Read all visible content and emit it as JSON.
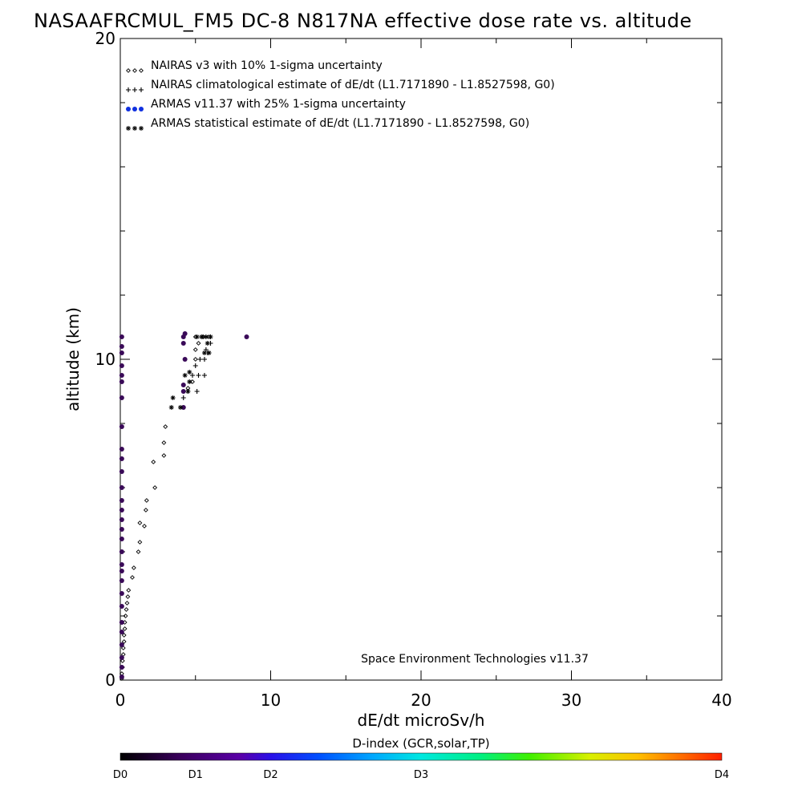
{
  "title": "NASAAFRCMUL_FM5 DC-8   N817NA effective dose rate vs. altitude",
  "credit": "Space Environment Technologies v11.37",
  "colorbar": {
    "label": "D-index (GCR,solar,TP)",
    "ticks": [
      "D0",
      "D1",
      "D2",
      "D3",
      "D4"
    ]
  },
  "chart_data": {
    "type": "scatter",
    "xlabel": "dE/dt microSv/h",
    "ylabel": "altitude (km)",
    "xlim": [
      0,
      40
    ],
    "ylim": [
      0,
      20
    ],
    "x_ticks": [
      "0",
      "10",
      "20",
      "30",
      "40"
    ],
    "y_ticks": [
      "0",
      "10",
      "20"
    ],
    "legend_position": "top-left",
    "series": [
      {
        "name": "NAIRAS v3 with 10% 1-sigma uncertainty",
        "marker": "diamond",
        "color": "#000000",
        "points": [
          [
            0.1,
            0.05
          ],
          [
            0.1,
            0.2
          ],
          [
            0.15,
            0.4
          ],
          [
            0.15,
            0.6
          ],
          [
            0.2,
            0.8
          ],
          [
            0.2,
            1.0
          ],
          [
            0.25,
            1.2
          ],
          [
            0.25,
            1.4
          ],
          [
            0.3,
            1.6
          ],
          [
            0.3,
            1.8
          ],
          [
            0.35,
            2.0
          ],
          [
            0.4,
            2.2
          ],
          [
            0.45,
            2.4
          ],
          [
            0.5,
            2.6
          ],
          [
            0.55,
            2.8
          ],
          [
            0.8,
            3.2
          ],
          [
            0.9,
            3.5
          ],
          [
            1.2,
            4.0
          ],
          [
            1.3,
            4.3
          ],
          [
            1.6,
            4.8
          ],
          [
            1.3,
            4.9
          ],
          [
            1.7,
            5.3
          ],
          [
            1.75,
            5.6
          ],
          [
            2.3,
            6.0
          ],
          [
            2.9,
            7.0
          ],
          [
            2.2,
            6.8
          ],
          [
            2.9,
            7.4
          ],
          [
            3.0,
            7.9
          ],
          [
            4.2,
            8.5
          ],
          [
            4.5,
            9.1
          ],
          [
            4.8,
            9.3
          ],
          [
            5.0,
            10.0
          ],
          [
            5.0,
            10.3
          ],
          [
            5.2,
            10.5
          ],
          [
            5.0,
            10.7
          ],
          [
            5.5,
            10.7
          ],
          [
            5.9,
            10.7
          ]
        ]
      },
      {
        "name": "NAIRAS climatological estimate of dE/dt (L1.7171890 - L1.8527598, G0)",
        "marker": "plus",
        "color": "#000000",
        "points": [
          [
            4.2,
            8.8
          ],
          [
            4.5,
            9.0
          ],
          [
            4.8,
            9.5
          ],
          [
            5.1,
            9.0
          ],
          [
            5.2,
            9.5
          ],
          [
            5.0,
            9.8
          ],
          [
            5.6,
            9.5
          ],
          [
            5.6,
            10.0
          ],
          [
            5.8,
            10.2
          ],
          [
            6.0,
            10.5
          ],
          [
            5.5,
            10.7
          ],
          [
            6.0,
            10.7
          ],
          [
            5.7,
            10.3
          ],
          [
            5.3,
            10.0
          ]
        ]
      },
      {
        "name": "ARMAS v11.37 with 25% 1-sigma uncertainty",
        "marker": "dot",
        "color": "#1030e0",
        "points": [
          [
            0.1,
            0.1
          ],
          [
            0.1,
            0.4
          ],
          [
            0.1,
            0.7
          ],
          [
            0.1,
            1.1
          ],
          [
            0.1,
            1.5
          ],
          [
            0.1,
            1.8
          ],
          [
            0.1,
            2.3
          ],
          [
            0.1,
            2.7
          ],
          [
            0.1,
            3.1
          ],
          [
            0.1,
            3.4
          ],
          [
            0.1,
            3.6
          ],
          [
            0.1,
            4.0
          ],
          [
            0.1,
            4.4
          ],
          [
            0.1,
            4.7
          ],
          [
            0.1,
            5.0
          ],
          [
            0.1,
            5.3
          ],
          [
            0.1,
            5.6
          ],
          [
            0.1,
            6.0
          ],
          [
            0.1,
            6.5
          ],
          [
            0.1,
            6.9
          ],
          [
            0.1,
            7.2
          ],
          [
            0.1,
            7.9
          ],
          [
            0.1,
            8.8
          ],
          [
            0.1,
            9.3
          ],
          [
            0.1,
            9.5
          ],
          [
            0.1,
            9.8
          ],
          [
            0.1,
            10.2
          ],
          [
            0.1,
            10.4
          ],
          [
            0.1,
            10.7
          ],
          [
            4.2,
            8.5
          ],
          [
            4.2,
            9.0
          ],
          [
            4.2,
            9.2
          ],
          [
            4.3,
            10.0
          ],
          [
            4.2,
            10.5
          ],
          [
            4.2,
            10.7
          ],
          [
            4.3,
            10.8
          ],
          [
            8.4,
            10.7
          ]
        ]
      },
      {
        "name": "ARMAS statistical estimate of dE/dt (L1.7171890 - L1.8527598, G0)",
        "marker": "asterisk",
        "color": "#000000",
        "points": [
          [
            3.4,
            8.5
          ],
          [
            3.5,
            8.8
          ],
          [
            4.0,
            8.5
          ],
          [
            4.5,
            9.0
          ],
          [
            4.6,
            9.3
          ],
          [
            4.3,
            9.5
          ],
          [
            4.6,
            9.6
          ],
          [
            5.6,
            10.2
          ],
          [
            5.9,
            10.2
          ],
          [
            5.8,
            10.5
          ],
          [
            5.7,
            10.7
          ],
          [
            6.0,
            10.7
          ],
          [
            5.4,
            10.7
          ],
          [
            5.1,
            10.7
          ]
        ]
      }
    ]
  }
}
